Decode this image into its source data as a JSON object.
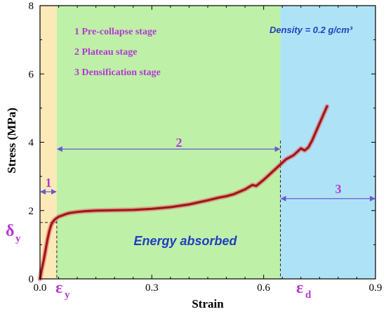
{
  "chart_data": {
    "type": "line",
    "title": "",
    "xlabel": "Strain",
    "ylabel": "Stress (MPa)",
    "xlim": [
      0,
      0.9
    ],
    "ylim": [
      0,
      8
    ],
    "x_ticks": [
      "0.0",
      "0.3",
      "0.6",
      "0.9"
    ],
    "x_tick_values": [
      0.0,
      0.3,
      0.6,
      0.9
    ],
    "y_ticks": [
      "0",
      "2",
      "4",
      "6",
      "8"
    ],
    "y_tick_values": [
      0,
      2,
      4,
      6,
      8
    ],
    "grid": false,
    "colors": {
      "line": "#a0161a",
      "line_glow": "#e86a6a",
      "stage1_region": "#fbeab8",
      "stage2_region": "#bff0a8",
      "stage3_region": "#aee3f7",
      "annotation": "#b23bd0",
      "arrow": "#6a5ad0",
      "text_blue": "#1f3fbf"
    },
    "regions": [
      {
        "stage": "1",
        "x_start": 0.0,
        "x_end": 0.045
      },
      {
        "stage": "2",
        "x_start": 0.045,
        "x_end": 0.645
      },
      {
        "stage": "3",
        "x_start": 0.645,
        "x_end": 0.9
      }
    ],
    "legend": {
      "placement": "top-left",
      "items": [
        "1 Pre-collapse stage",
        "2 Plateau stage",
        "3 Densification stage"
      ]
    },
    "density_label": "Density = 0.2 g/cm³",
    "energy_label": "Energy absorbed",
    "annotations": {
      "stage1_number": "1",
      "stage2_number": "2",
      "stage3_number": "3",
      "epsilon_y_symbol": "ε",
      "epsilon_y_subscript": "y",
      "epsilon_d_symbol": "ε",
      "epsilon_d_subscript": "d",
      "delta_y_symbol": "δ",
      "delta_y_subscript": "y",
      "epsilon_y_value": 0.045,
      "epsilon_d_value": 0.645,
      "delta_y_value": 1.65,
      "arrow_stage1_y": 2.55,
      "arrow_stage2_y": 3.8,
      "arrow_stage3_y": 2.35
    },
    "series": [
      {
        "x": [
          0.0,
          0.005,
          0.01,
          0.015,
          0.02,
          0.025,
          0.03,
          0.035,
          0.04,
          0.045,
          0.05,
          0.06,
          0.07,
          0.08,
          0.1,
          0.12,
          0.15,
          0.2,
          0.25,
          0.3,
          0.35,
          0.4,
          0.45,
          0.48,
          0.5,
          0.52,
          0.55,
          0.57,
          0.58,
          0.6,
          0.62,
          0.645,
          0.66,
          0.68,
          0.7,
          0.71,
          0.72,
          0.73,
          0.74,
          0.75,
          0.76,
          0.77
        ],
        "y": [
          0.0,
          0.3,
          0.55,
          0.85,
          1.15,
          1.4,
          1.58,
          1.68,
          1.74,
          1.78,
          1.82,
          1.86,
          1.9,
          1.93,
          1.96,
          1.98,
          2.0,
          2.01,
          2.02,
          2.05,
          2.1,
          2.18,
          2.3,
          2.38,
          2.42,
          2.48,
          2.62,
          2.75,
          2.72,
          2.9,
          3.1,
          3.35,
          3.5,
          3.62,
          3.82,
          3.76,
          3.85,
          4.05,
          4.3,
          4.55,
          4.8,
          5.05
        ]
      }
    ]
  }
}
